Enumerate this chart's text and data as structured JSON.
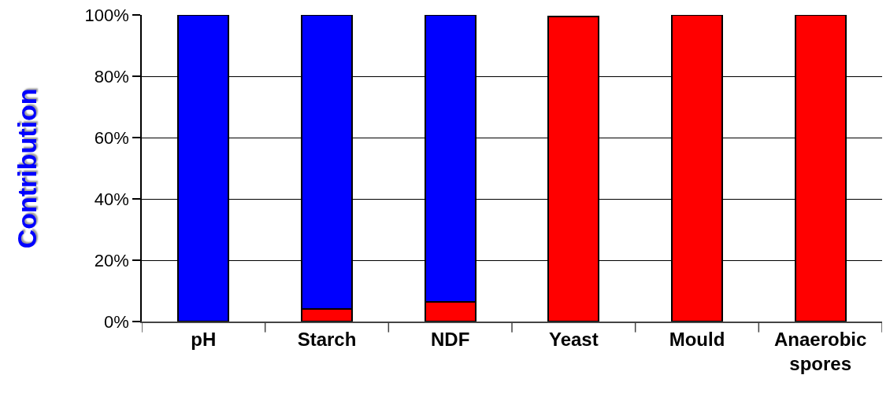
{
  "chart_data": {
    "type": "bar",
    "stacked": true,
    "ylabel": "Contribution",
    "categories": [
      "pH",
      "Starch",
      "NDF",
      "Yeast",
      "Mould",
      "Anaerobic spores"
    ],
    "series": [
      {
        "color": "#ff0000",
        "values": [
          0,
          4,
          6.5,
          99.5,
          100,
          100
        ]
      },
      {
        "color": "#0000ff",
        "values": [
          100,
          96,
          93.5,
          null,
          0,
          0
        ]
      }
    ],
    "ylim": [
      0,
      100
    ],
    "yticks": [
      {
        "value": 0,
        "label": "0%"
      },
      {
        "value": 20,
        "label": "20%"
      },
      {
        "value": 40,
        "label": "40%"
      },
      {
        "value": 60,
        "label": "60%"
      },
      {
        "value": 80,
        "label": "80%"
      },
      {
        "value": 100,
        "label": "100%"
      }
    ],
    "grid": "y"
  }
}
